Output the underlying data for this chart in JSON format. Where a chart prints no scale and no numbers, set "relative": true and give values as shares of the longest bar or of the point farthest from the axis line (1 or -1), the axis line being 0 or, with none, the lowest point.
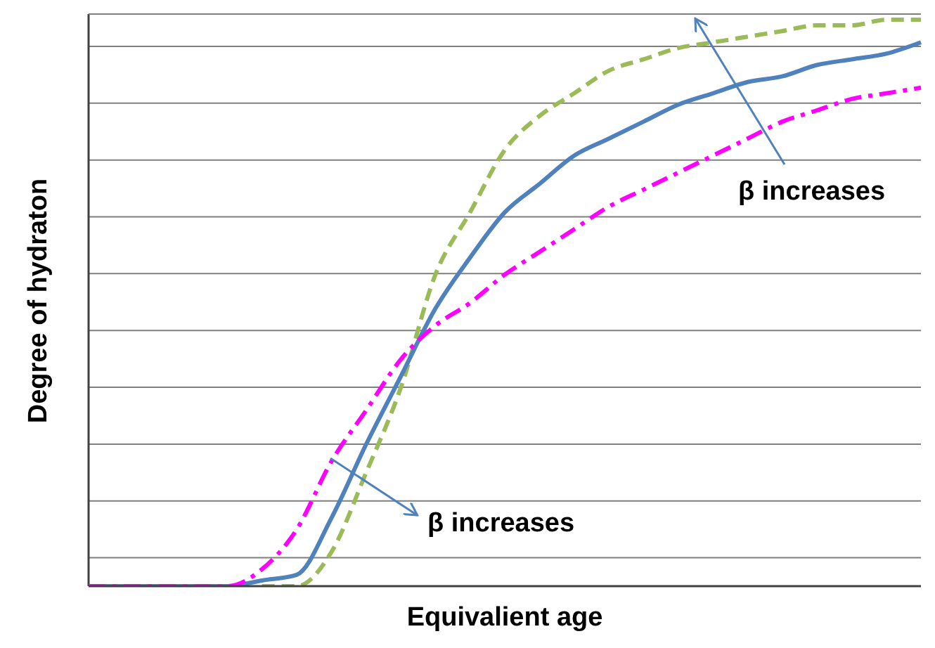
{
  "chart_data": {
    "type": "line",
    "relative": true,
    "xlabel": "Equivalient age",
    "ylabel": "Degree of hydraton",
    "grid": "y",
    "legend": false,
    "marker": "none",
    "categories": [
      null,
      null,
      null,
      null,
      null,
      null,
      null,
      null,
      null,
      null,
      null,
      null,
      null,
      null,
      null,
      null,
      null,
      null,
      null,
      null,
      null,
      null,
      null,
      null,
      null
    ],
    "series": [
      {
        "color": "#9bbb59",
        "line_style": "dashed",
        "values": [
          null,
          null,
          null,
          null,
          null,
          0,
          0,
          0.06,
          0.2,
          0.35,
          0.55,
          0.66,
          0.77,
          0.83,
          0.87,
          0.91,
          0.93,
          0.95,
          0.96,
          0.97,
          0.98,
          0.99,
          0.99,
          1,
          1
        ]
      },
      {
        "color": "#4f81bd",
        "line_style": "solid",
        "values": [
          0,
          0,
          0,
          0,
          0,
          0.01,
          0.02,
          0.12,
          0.25,
          0.37,
          0.49,
          0.58,
          0.66,
          0.71,
          0.76,
          0.79,
          0.82,
          0.85,
          0.87,
          0.89,
          0.9,
          0.92,
          0.93,
          0.94,
          0.96
        ]
      },
      {
        "color": "#ff00ff",
        "line_style": "dashdot",
        "values": [
          0,
          0,
          0,
          0,
          0,
          0.03,
          0.1,
          0.22,
          0.31,
          0.4,
          0.46,
          0.5,
          0.55,
          0.59,
          0.63,
          0.67,
          0.7,
          0.73,
          0.76,
          0.79,
          0.82,
          0.84,
          0.86,
          0.87,
          0.88
        ]
      }
    ],
    "annotations": [
      "β increases",
      "β increases"
    ]
  }
}
